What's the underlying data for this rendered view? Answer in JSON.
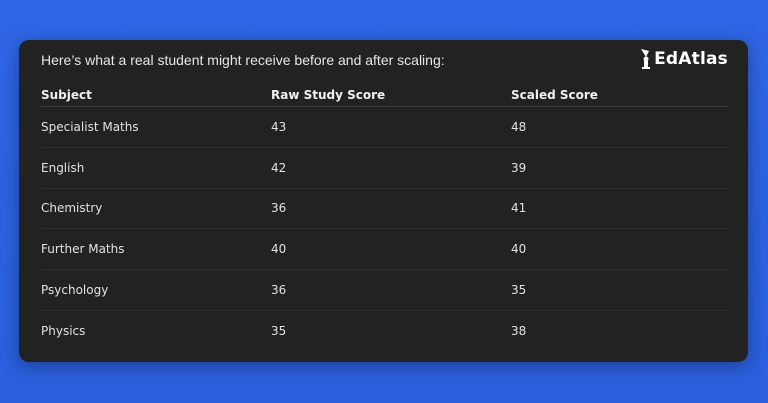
{
  "intro": "Here’s what a real student might receive before and after scaling:",
  "logo": {
    "text": "EdAtlas",
    "icon": "graduate-torch-icon"
  },
  "colors": {
    "background": "#2a63e0",
    "card": "#222222"
  },
  "table": {
    "headers": [
      "Subject",
      "Raw Study Score",
      "Scaled Score"
    ],
    "rows": [
      [
        "Specialist Maths",
        "43",
        "48"
      ],
      [
        "English",
        "42",
        "39"
      ],
      [
        "Chemistry",
        "36",
        "41"
      ],
      [
        "Further Maths",
        "40",
        "40"
      ],
      [
        "Psychology",
        "36",
        "35"
      ],
      [
        "Physics",
        "35",
        "38"
      ]
    ]
  }
}
